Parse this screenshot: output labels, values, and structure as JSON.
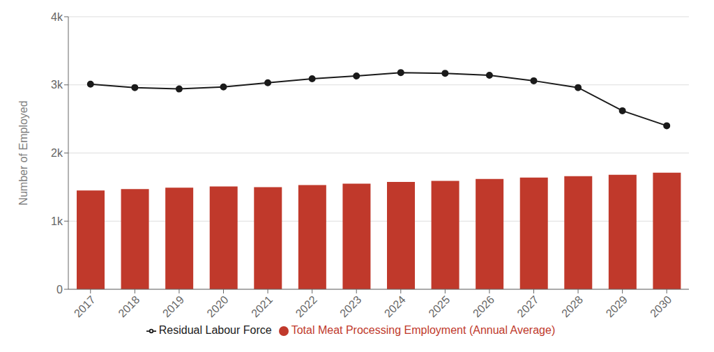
{
  "chart_data": {
    "type": "bar",
    "categories": [
      "2017",
      "2018",
      "2019",
      "2020",
      "2021",
      "2022",
      "2023",
      "2024",
      "2025",
      "2026",
      "2027",
      "2028",
      "2029",
      "2030"
    ],
    "ylabel": "Number of Employed",
    "ylim": [
      0,
      4000
    ],
    "yticks": [
      0,
      {
        "value": 1000,
        "label": "1k"
      },
      {
        "value": 2000,
        "label": "2k"
      },
      {
        "value": 3000,
        "label": "3k"
      },
      {
        "value": 4000,
        "label": "4k"
      }
    ],
    "grid": "y",
    "legend": "bottom",
    "series": [
      {
        "name": "Total Meat Processing Employment (Annual Average)",
        "type": "bar",
        "color": "#C0392B",
        "values": [
          1450,
          1470,
          1490,
          1510,
          1500,
          1530,
          1550,
          1575,
          1590,
          1620,
          1640,
          1660,
          1680,
          1710
        ]
      },
      {
        "name": "Residual Labour Force",
        "type": "line",
        "color": "#1a1a1a",
        "marker": "circle",
        "values": [
          3010,
          2960,
          2940,
          2970,
          3030,
          3090,
          3130,
          3180,
          3170,
          3140,
          3060,
          2960,
          2620,
          2400
        ]
      }
    ]
  }
}
